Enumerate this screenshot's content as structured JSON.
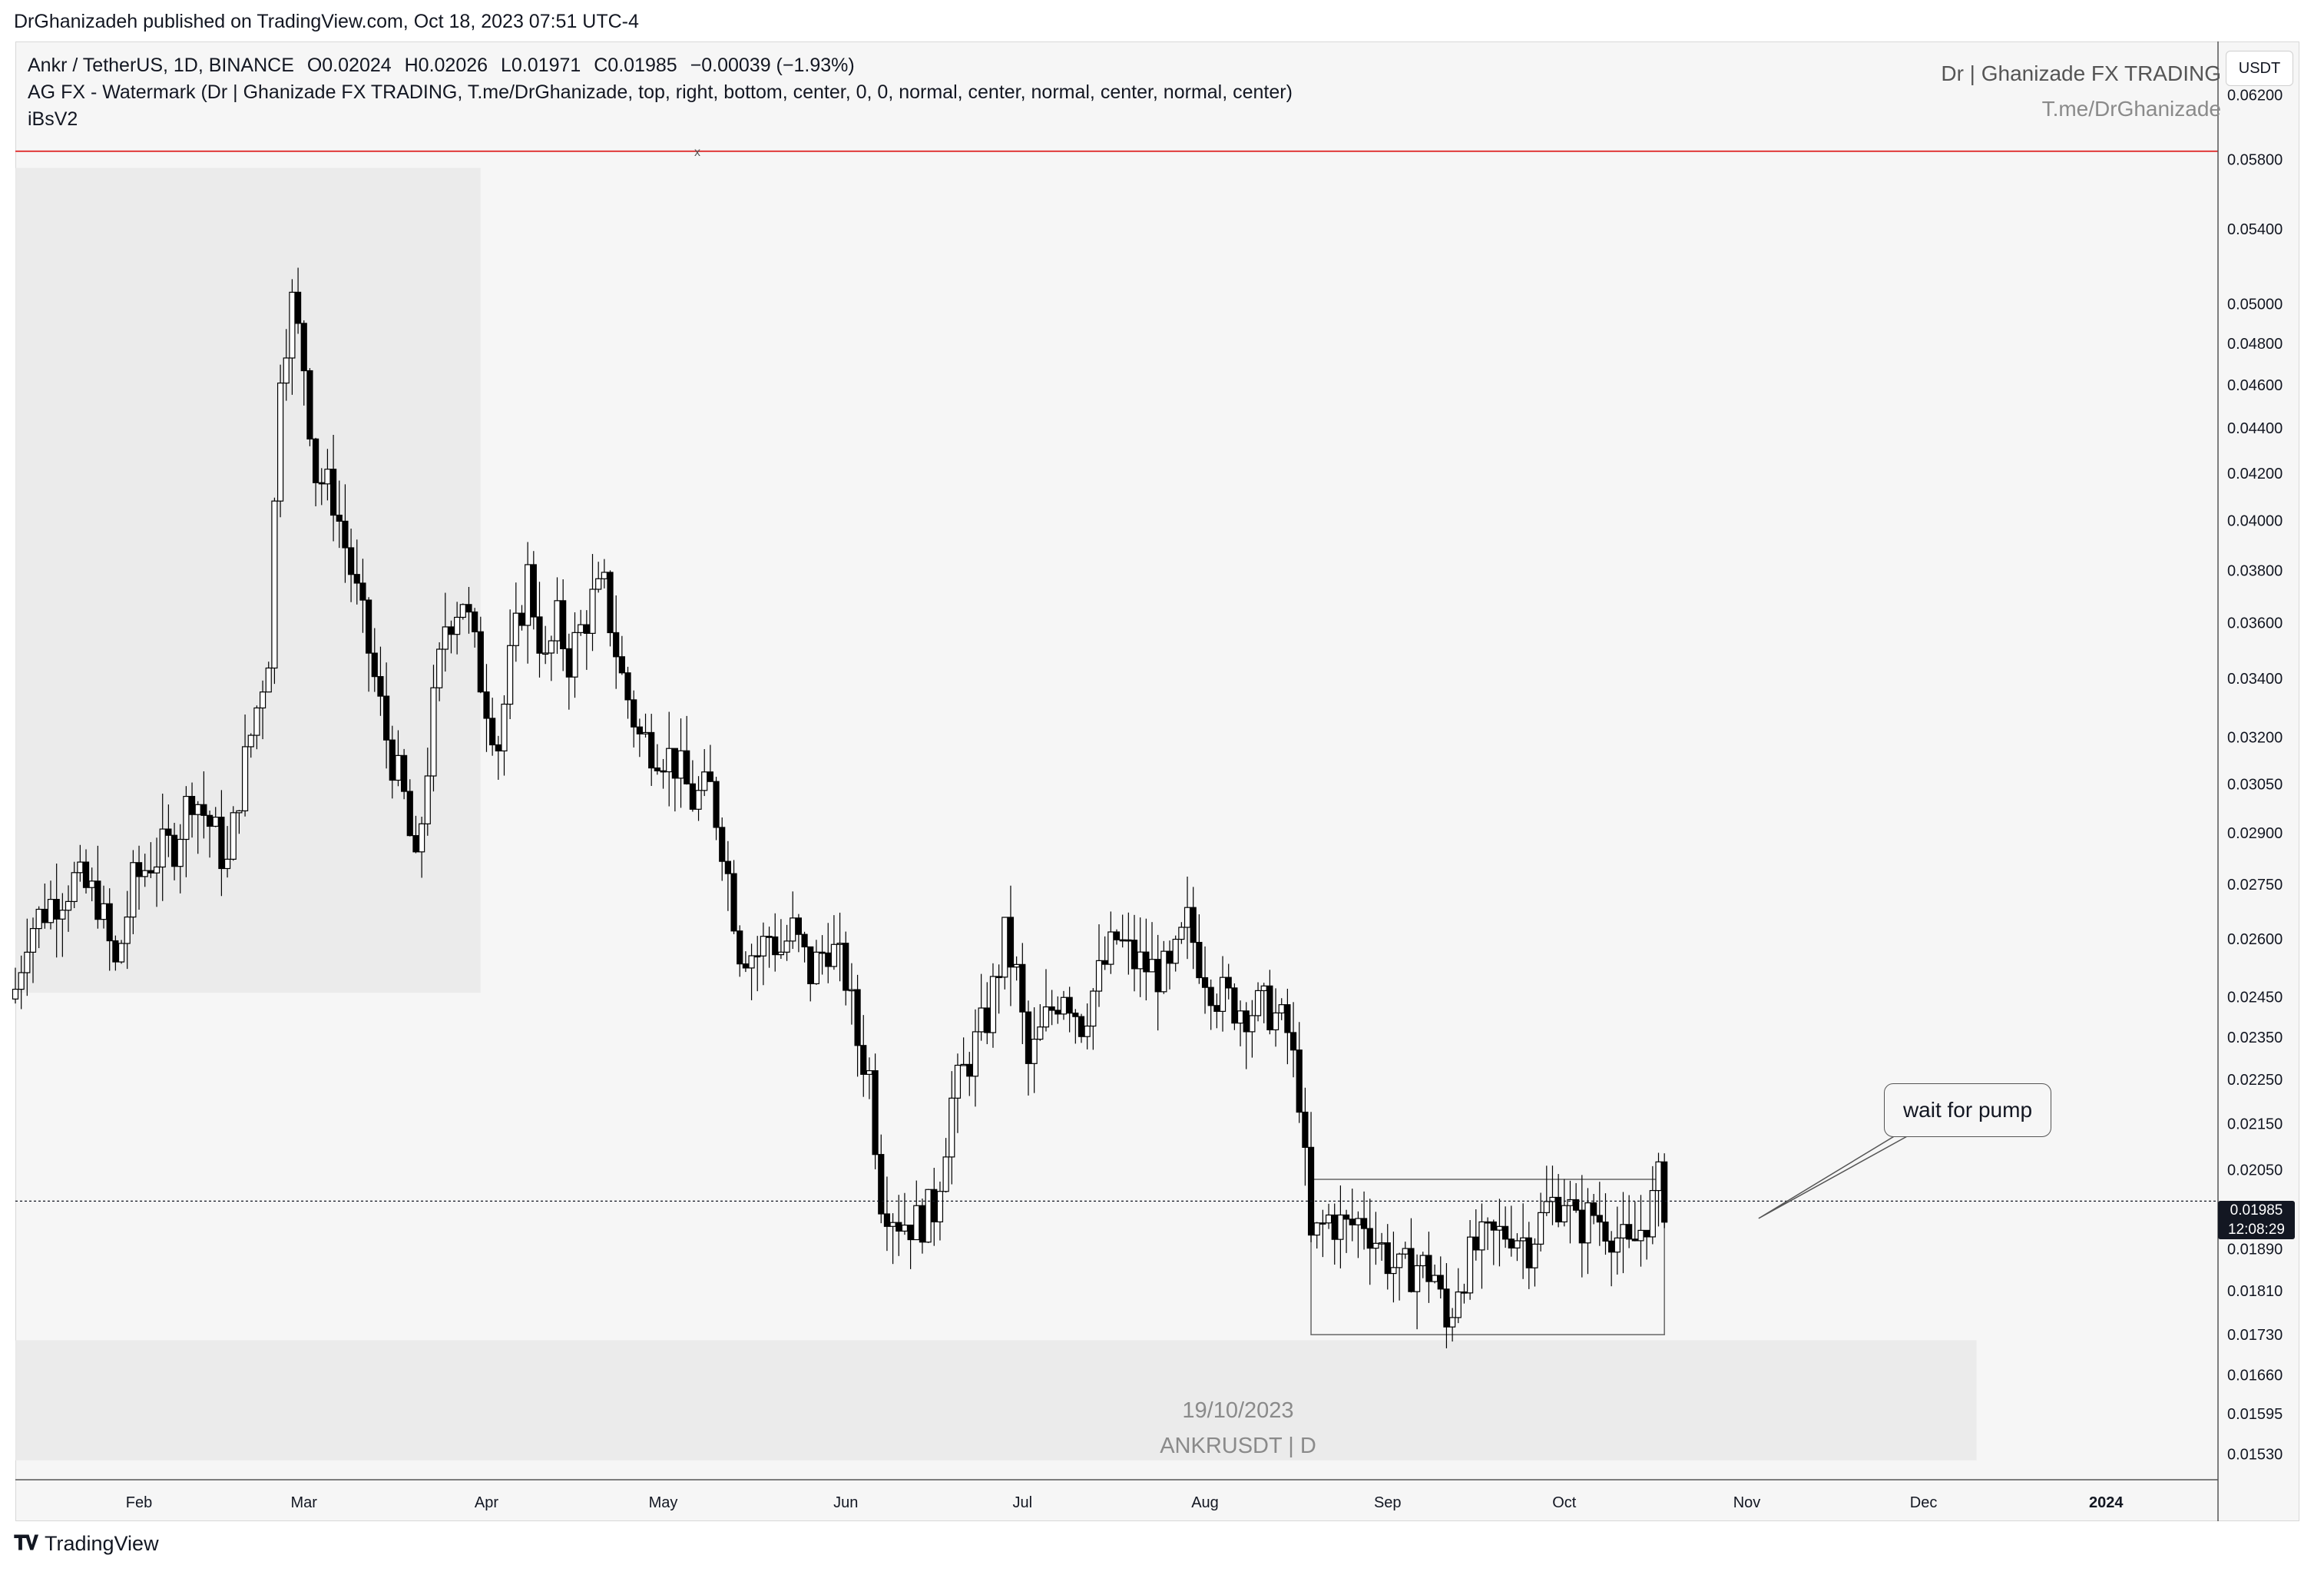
{
  "header": {
    "published": "DrGhanizadeh published on TradingView.com, Oct 18, 2023 07:51 UTC-4"
  },
  "legend": {
    "symbol": "Ankr / TetherUS, 1D, BINANCE",
    "open_label": "O",
    "open": "0.02024",
    "high_label": "H",
    "high": "0.02026",
    "low_label": "L",
    "low": "0.01971",
    "close_label": "C",
    "close": "0.01985",
    "change": "−0.00039 (−1.93%)",
    "indicator1": "AG FX - Watermark (Dr | Ghanizade FX TRADING, T.me/DrGhanizade, top, right, bottom, center, 0, 0, normal, center, normal, center, normal, center)",
    "indicator2": "iBsV2"
  },
  "watermark": {
    "line1": "Dr | Ghanizade FX TRADING",
    "line2": "T.me/DrGhanizade",
    "bottom_line1": "19/10/2023",
    "bottom_line2": "ANKRUSDT | D"
  },
  "price_scale": {
    "unit": "USDT",
    "current_price": "0.01985",
    "countdown": "12:08:29",
    "ticks": [
      "0.06200",
      "0.05800",
      "0.05400",
      "0.05000",
      "0.04800",
      "0.04600",
      "0.04400",
      "0.04200",
      "0.04000",
      "0.03800",
      "0.03600",
      "0.03400",
      "0.03200",
      "0.03050",
      "0.02900",
      "0.02750",
      "0.02600",
      "0.02450",
      "0.02350",
      "0.02250",
      "0.02150",
      "0.02050",
      "0.01890",
      "0.01810",
      "0.01730",
      "0.01660",
      "0.01595",
      "0.01530"
    ]
  },
  "annotation": {
    "text": "wait for pump"
  },
  "horizontal_line": {
    "price": 0.0585,
    "marker": "x",
    "color": "#e03a3a"
  },
  "footer": {
    "brand_icon": "tradingview-logo-icon",
    "brand": "TradingView"
  },
  "colors": {
    "background": "#f6f6f6",
    "candle_up": "#ffffff",
    "candle_down": "#000000",
    "zone": "#e9e9e9"
  },
  "chart_data": {
    "type": "candlestick",
    "symbol": "ANKRUSDT",
    "timeframe": "1D",
    "scale": "log",
    "x_ticks": [
      "Feb",
      "Mar",
      "Apr",
      "May",
      "Jun",
      "Jul",
      "Aug",
      "Sep",
      "Oct",
      "Nov",
      "Dec",
      "2024"
    ],
    "x_tick_dates": [
      "2023-02-01",
      "2023-03-01",
      "2023-04-01",
      "2023-05-01",
      "2023-06-01",
      "2023-07-01",
      "2023-08-01",
      "2023-09-01",
      "2023-10-01",
      "2023-11-01",
      "2023-12-01",
      "2024-01-01"
    ],
    "x_range": [
      "2023-01-11",
      "2024-01-20"
    ],
    "ylim": [
      0.0149,
      0.0655
    ],
    "close_path": [
      [
        "2023-01-11",
        0.0247
      ],
      [
        "2023-01-13",
        0.0262
      ],
      [
        "2023-01-17",
        0.027
      ],
      [
        "2023-01-21",
        0.0276
      ],
      [
        "2023-01-25",
        0.0271
      ],
      [
        "2023-01-28",
        0.0252
      ],
      [
        "2023-01-31",
        0.0275
      ],
      [
        "2023-02-03",
        0.0282
      ],
      [
        "2023-02-07",
        0.0287
      ],
      [
        "2023-02-10",
        0.0303
      ],
      [
        "2023-02-14",
        0.0289
      ],
      [
        "2023-02-16",
        0.028
      ],
      [
        "2023-02-18",
        0.0303
      ],
      [
        "2023-02-21",
        0.033
      ],
      [
        "2023-02-23",
        0.035
      ],
      [
        "2023-02-25",
        0.047
      ],
      [
        "2023-02-27",
        0.05
      ],
      [
        "2023-03-01",
        0.047
      ],
      [
        "2023-03-03",
        0.042
      ],
      [
        "2023-03-06",
        0.041
      ],
      [
        "2023-03-09",
        0.038
      ],
      [
        "2023-03-12",
        0.035
      ],
      [
        "2023-03-15",
        0.032
      ],
      [
        "2023-03-18",
        0.03
      ],
      [
        "2023-03-20",
        0.0278
      ],
      [
        "2023-03-23",
        0.033
      ],
      [
        "2023-03-25",
        0.036
      ],
      [
        "2023-03-28",
        0.037
      ],
      [
        "2023-03-31",
        0.034
      ],
      [
        "2023-04-03",
        0.0318
      ],
      [
        "2023-04-05",
        0.0345
      ],
      [
        "2023-04-08",
        0.0378
      ],
      [
        "2023-04-11",
        0.0344
      ],
      [
        "2023-04-13",
        0.036
      ],
      [
        "2023-04-15",
        0.0347
      ],
      [
        "2023-04-19",
        0.0368
      ],
      [
        "2023-04-21",
        0.0372
      ],
      [
        "2023-04-24",
        0.034
      ],
      [
        "2023-04-27",
        0.032
      ],
      [
        "2023-04-30",
        0.0317
      ],
      [
        "2023-05-03",
        0.0312
      ],
      [
        "2023-05-06",
        0.03
      ],
      [
        "2023-05-09",
        0.0303
      ],
      [
        "2023-05-11",
        0.0288
      ],
      [
        "2023-05-14",
        0.0258
      ],
      [
        "2023-05-17",
        0.0256
      ],
      [
        "2023-05-19",
        0.0261
      ],
      [
        "2023-05-21",
        0.0257
      ],
      [
        "2023-05-23",
        0.0262
      ],
      [
        "2023-05-26",
        0.0251
      ],
      [
        "2023-05-29",
        0.0259
      ],
      [
        "2023-06-01",
        0.025
      ],
      [
        "2023-06-03",
        0.0234
      ],
      [
        "2023-06-05",
        0.0226
      ],
      [
        "2023-06-07",
        0.02
      ],
      [
        "2023-06-10",
        0.0195
      ],
      [
        "2023-06-13",
        0.0194
      ],
      [
        "2023-06-16",
        0.0197
      ],
      [
        "2023-06-19",
        0.022
      ],
      [
        "2023-06-22",
        0.023
      ],
      [
        "2023-06-25",
        0.024
      ],
      [
        "2023-06-28",
        0.026
      ],
      [
        "2023-06-30",
        0.025
      ],
      [
        "2023-07-02",
        0.0228
      ],
      [
        "2023-07-05",
        0.0239
      ],
      [
        "2023-07-08",
        0.0248
      ],
      [
        "2023-07-11",
        0.0239
      ],
      [
        "2023-07-14",
        0.025
      ],
      [
        "2023-07-17",
        0.026
      ],
      [
        "2023-07-20",
        0.0254
      ],
      [
        "2023-07-23",
        0.0252
      ],
      [
        "2023-07-26",
        0.025
      ],
      [
        "2023-07-29",
        0.0264
      ],
      [
        "2023-07-31",
        0.0255
      ],
      [
        "2023-08-03",
        0.0246
      ],
      [
        "2023-08-06",
        0.0243
      ],
      [
        "2023-08-09",
        0.0242
      ],
      [
        "2023-08-12",
        0.0242
      ],
      [
        "2023-08-15",
        0.0236
      ],
      [
        "2023-08-17",
        0.0222
      ],
      [
        "2023-08-19",
        0.019
      ],
      [
        "2023-08-22",
        0.0195
      ],
      [
        "2023-08-25",
        0.0193
      ],
      [
        "2023-08-28",
        0.0195
      ],
      [
        "2023-08-31",
        0.0189
      ],
      [
        "2023-09-03",
        0.0184
      ],
      [
        "2023-09-06",
        0.0186
      ],
      [
        "2023-09-09",
        0.0184
      ],
      [
        "2023-09-11",
        0.0174
      ],
      [
        "2023-09-13",
        0.0183
      ],
      [
        "2023-09-16",
        0.0189
      ],
      [
        "2023-09-19",
        0.0191
      ],
      [
        "2023-09-22",
        0.0193
      ],
      [
        "2023-09-25",
        0.019
      ],
      [
        "2023-09-28",
        0.0197
      ],
      [
        "2023-10-01",
        0.02
      ],
      [
        "2023-10-03",
        0.0193
      ],
      [
        "2023-10-06",
        0.0196
      ],
      [
        "2023-10-09",
        0.0193
      ],
      [
        "2023-10-12",
        0.0188
      ],
      [
        "2023-10-14",
        0.0193
      ],
      [
        "2023-10-16",
        0.0198
      ],
      [
        "2023-10-17",
        0.0202
      ],
      [
        "2023-10-18",
        0.01985
      ]
    ],
    "highlight_zones": [
      {
        "from": "2023-01-11",
        "to": "2023-03-31",
        "low": 0.0246,
        "high": 0.0575
      },
      {
        "from": "2023-01-11",
        "to": "2023-12-10",
        "low": 0.0152,
        "high": 0.0172
      }
    ],
    "range_box": {
      "from": "2023-08-19",
      "to": "2023-10-18",
      "low": 0.0173,
      "high": 0.0203
    },
    "callout": {
      "date": "2023-11-03",
      "price": 0.0195
    },
    "grid": false,
    "legend": "top-left"
  }
}
